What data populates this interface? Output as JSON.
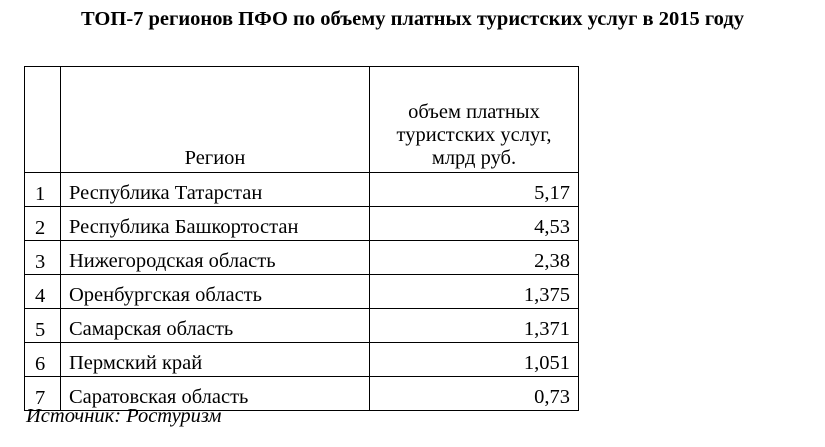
{
  "title": "ТОП-7 регионов ПФО по объему платных туристских услуг в 2015 году",
  "table": {
    "headers": [
      "",
      "Регион",
      "объем платных туристских услуг, млрд руб."
    ],
    "rows": [
      {
        "n": "1",
        "region": "Республика Татарстан",
        "value": "5,17"
      },
      {
        "n": "2",
        "region": "Республика Башкортостан",
        "value": "4,53"
      },
      {
        "n": "3",
        "region": "Нижегородская область",
        "value": "2,38"
      },
      {
        "n": "4",
        "region": "Оренбургская область",
        "value": "1,375"
      },
      {
        "n": "5",
        "region": "Самарская область",
        "value": "1,371"
      },
      {
        "n": "6",
        "region": "Пермский край",
        "value": "1,051"
      },
      {
        "n": "7",
        "region": "Саратовская область",
        "value": "0,73"
      }
    ]
  },
  "source": "Источник: Ростуризм"
}
